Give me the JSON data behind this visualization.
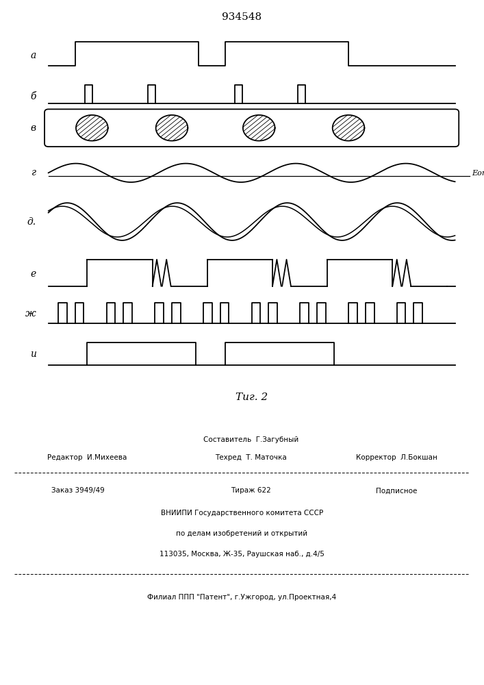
{
  "title": "934548",
  "fig_label": "Τиг. 2",
  "background_color": "#ffffff",
  "line_color": "#000000",
  "label_a": "а",
  "label_b": "б",
  "label_v": "в",
  "label_g": "г",
  "label_d": "д.",
  "label_e": "е",
  "label_zh": "ж",
  "label_i": "и",
  "eop_label": "Eоп",
  "footer_line1": "Составитель  Г.Загубный",
  "footer_line2a": "Редактор  И.Михеева",
  "footer_line2b": "Техред  Т. Маточка",
  "footer_line2c": "Корректор  Л.Бокшан",
  "footer_line3a": "Заказ 3949/49",
  "footer_line3b": "Тираж 622",
  "footer_line3c": "Подписное",
  "footer_line4": "ВНИИПИ Государственного комитета СССР",
  "footer_line5": "по делам изобретений и открытий",
  "footer_line6": "113035, Москва, Ж-35, Раушская наб., д.4/5",
  "footer_line7": "Филиал ППП \"Патент\", г.Ужгород, ул.Проектная,4"
}
